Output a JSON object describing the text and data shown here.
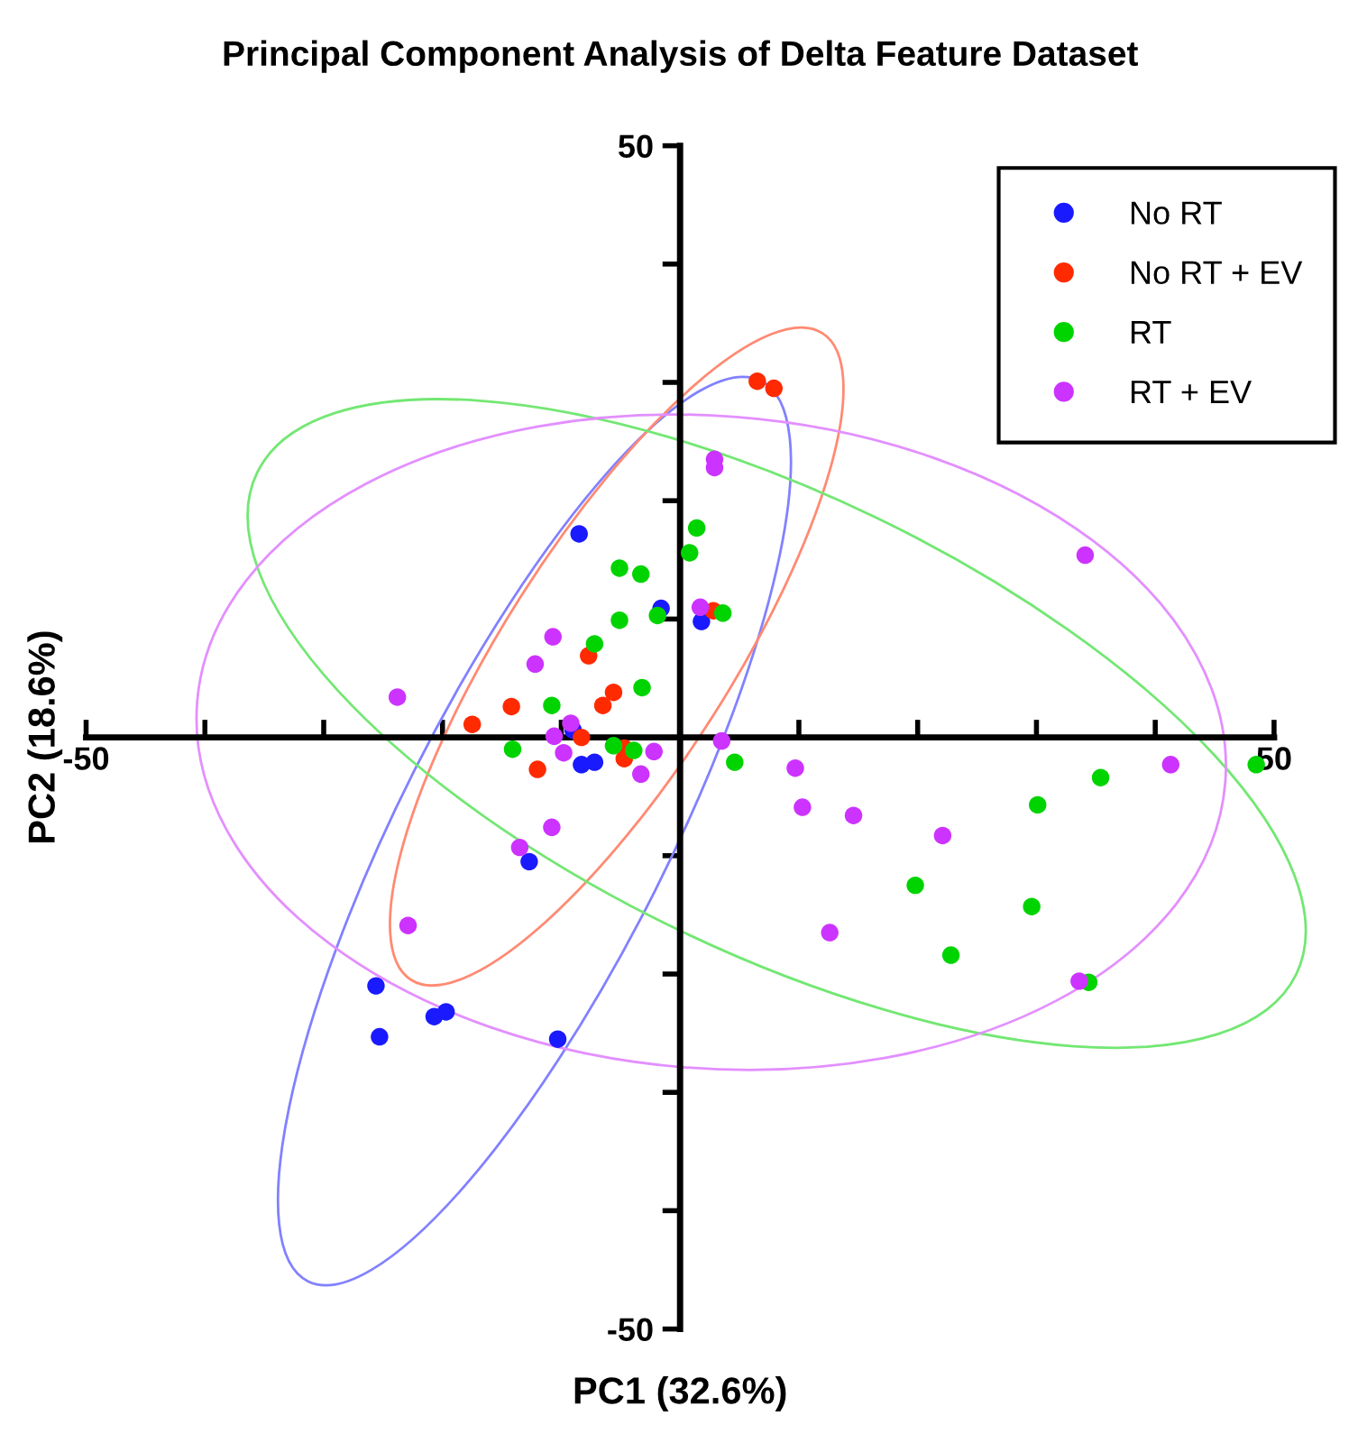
{
  "chart_data": {
    "type": "scatter",
    "title": "Principal Component Analysis of Delta Feature Dataset",
    "xlabel": "PC1 (32.6%)",
    "ylabel": "PC2 (18.6%)",
    "xlim": [
      -50,
      50
    ],
    "ylim": [
      -50,
      50
    ],
    "xticks": [
      -50,
      {
        "value": -40,
        "label": null
      },
      {
        "value": -30,
        "label": null
      },
      {
        "value": -20,
        "label": null
      },
      {
        "value": -10,
        "label": null
      },
      {
        "value": 10,
        "label": null
      },
      {
        "value": 20,
        "label": null
      },
      {
        "value": 30,
        "label": null
      },
      {
        "value": 40,
        "label": null
      },
      50
    ],
    "yticks": [
      -50,
      {
        "value": -40,
        "label": null
      },
      {
        "value": -30,
        "label": null
      },
      {
        "value": -20,
        "label": null
      },
      {
        "value": -10,
        "label": null
      },
      {
        "value": 10,
        "label": null
      },
      {
        "value": 20,
        "label": null
      },
      {
        "value": 30,
        "label": null
      },
      {
        "value": 40,
        "label": null
      },
      50
    ],
    "grid": false,
    "legend": "top right",
    "marker": "circle",
    "series": [
      {
        "name": "No RT",
        "color": "#1a1aff",
        "x": [
          -8.5,
          -1.6,
          1.8,
          -9.0,
          -8.3,
          -7.2,
          -12.7,
          -25.6,
          -20.7,
          -19.7,
          -25.3,
          -10.3
        ],
        "values": [
          17.2,
          10.9,
          9.8,
          0.6,
          -2.3,
          -2.1,
          -10.5,
          -21.0,
          -23.6,
          -23.2,
          -25.3,
          -25.5
        ]
      },
      {
        "name": "No RT + EV",
        "color": "#ff2a00",
        "x": [
          6.5,
          7.9,
          2.8,
          -7.7,
          -5.6,
          -6.5,
          -14.2,
          -17.5,
          -8.3,
          -12.0,
          -4.7,
          -4.7
        ],
        "values": [
          30.1,
          29.5,
          10.7,
          6.9,
          3.8,
          2.7,
          2.6,
          1.1,
          0.0,
          -2.7,
          -0.9,
          -1.8
        ]
      },
      {
        "name": "RT",
        "color": "#00d400",
        "x": [
          1.4,
          0.8,
          -5.1,
          -3.3,
          -1.9,
          -5.1,
          3.6,
          -7.2,
          -3.2,
          -10.8,
          -14.1,
          -5.6,
          -3.9,
          4.6,
          30.1,
          35.4,
          48.5,
          19.8,
          29.6,
          22.8,
          34.4
        ],
        "values": [
          17.7,
          15.6,
          14.3,
          13.8,
          10.3,
          9.9,
          10.5,
          7.9,
          4.2,
          2.7,
          -1.0,
          -0.7,
          -1.1,
          -2.1,
          -5.7,
          -3.4,
          -2.3,
          -12.5,
          -14.3,
          -18.4,
          -20.7
        ]
      },
      {
        "name": "RT + EV",
        "color": "#cc33ff",
        "x": [
          2.9,
          2.9,
          -10.7,
          -12.2,
          -23.8,
          -9.2,
          1.7,
          34.1,
          3.5,
          -10.6,
          -9.8,
          -2.2,
          -3.3,
          -10.8,
          -13.5,
          -22.9,
          9.7,
          10.3,
          14.6,
          22.1,
          41.3,
          12.6,
          33.6
        ],
        "values": [
          23.5,
          22.8,
          8.5,
          6.2,
          3.4,
          1.2,
          11.0,
          15.4,
          -0.3,
          0.1,
          -1.3,
          -1.2,
          -3.1,
          -7.6,
          -9.3,
          -15.9,
          -2.6,
          -5.9,
          -6.6,
          -8.3,
          -2.3,
          -16.5,
          -20.6
        ]
      }
    ]
  }
}
